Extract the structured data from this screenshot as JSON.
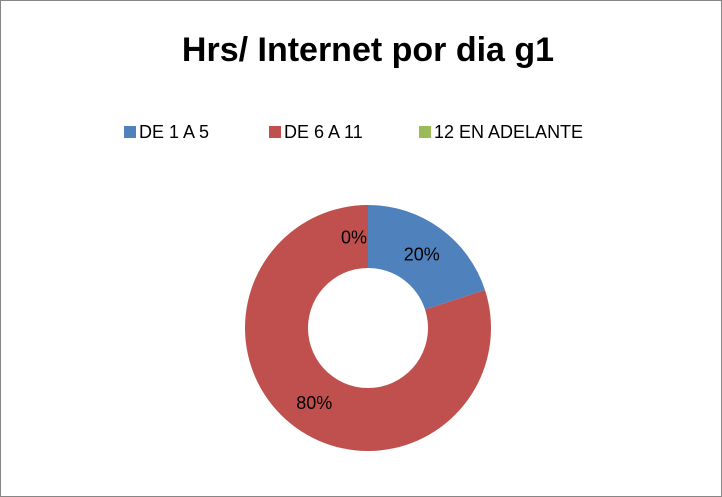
{
  "chart_data": {
    "type": "donut",
    "title": "Hrs/ Internet por dia g1",
    "categories": [
      "DE 1 A 5",
      "DE 6 A 11",
      "12 EN ADELANTE"
    ],
    "values": [
      20,
      80,
      0
    ],
    "value_labels": [
      "20%",
      "80%",
      "0%"
    ],
    "colors": [
      "#4f81bd",
      "#c0504d",
      "#9bbb59"
    ],
    "legend": "top"
  }
}
